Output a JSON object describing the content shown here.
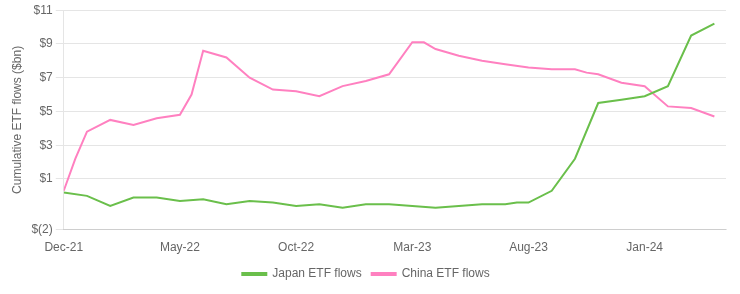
{
  "chart_data": {
    "type": "line",
    "ylabel": "Cumulative ETF flows ($bn)",
    "xlim": [
      0,
      28.5
    ],
    "xticks": [
      {
        "value": 0,
        "label": "Dec-21"
      },
      {
        "value": 5,
        "label": "May-22"
      },
      {
        "value": 10,
        "label": "Oct-22"
      },
      {
        "value": 15,
        "label": "Mar-23"
      },
      {
        "value": 20,
        "label": "Aug-23"
      },
      {
        "value": 25,
        "label": "Jan-24"
      }
    ],
    "ylim": [
      -2,
      11
    ],
    "yticks": [
      {
        "value": -2,
        "label": "$(2)"
      },
      {
        "value": 1,
        "label": "$1"
      },
      {
        "value": 3,
        "label": "$3"
      },
      {
        "value": 5,
        "label": "$5"
      },
      {
        "value": 7,
        "label": "$7"
      },
      {
        "value": 9,
        "label": "$9"
      },
      {
        "value": 11,
        "label": "$11"
      }
    ],
    "grid": "y",
    "legend": "bottom",
    "series": [
      {
        "name": "Japan ETF flows",
        "color": "#6abf4b",
        "x": [
          0,
          1,
          2,
          3,
          4,
          5,
          6,
          7,
          8,
          9,
          10,
          11,
          12,
          13,
          14,
          15,
          16,
          17,
          18,
          19,
          19.5,
          20,
          21,
          22,
          23,
          24,
          25,
          26,
          27,
          28
        ],
        "values": [
          0.2,
          0.0,
          -0.6,
          -0.1,
          -0.1,
          -0.3,
          -0.2,
          -0.5,
          -0.3,
          -0.4,
          -0.6,
          -0.5,
          -0.7,
          -0.5,
          -0.5,
          -0.6,
          -0.7,
          -0.6,
          -0.5,
          -0.5,
          -0.4,
          -0.4,
          0.3,
          2.2,
          5.5,
          5.7,
          5.9,
          6.5,
          9.5,
          10.2
        ]
      },
      {
        "name": "China ETF flows",
        "color": "#ff80c0",
        "x": [
          0,
          0.5,
          1,
          2,
          3,
          4,
          5,
          5.5,
          6,
          7,
          8,
          9,
          10,
          11,
          12,
          13,
          14,
          15,
          15.5,
          16,
          17,
          18,
          19,
          20,
          21,
          22,
          22.5,
          23,
          24,
          25,
          26,
          27,
          28
        ],
        "values": [
          0.3,
          2.2,
          3.8,
          4.5,
          4.2,
          4.6,
          4.8,
          6.0,
          8.6,
          8.2,
          7.0,
          6.3,
          6.2,
          5.9,
          6.5,
          6.8,
          7.2,
          9.1,
          9.1,
          8.7,
          8.3,
          8.0,
          7.8,
          7.6,
          7.5,
          7.5,
          7.3,
          7.2,
          6.7,
          6.5,
          5.3,
          5.2,
          4.7
        ]
      }
    ]
  }
}
